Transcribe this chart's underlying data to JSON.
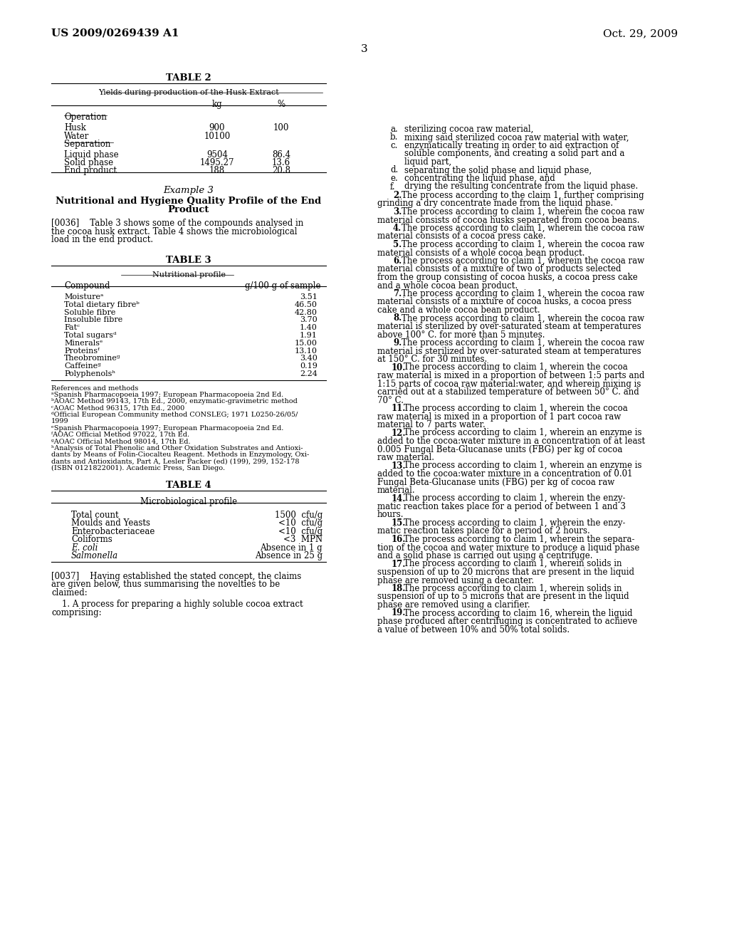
{
  "bg_color": "#ffffff",
  "header_left": "US 2009/0269439 A1",
  "header_right": "Oct. 29, 2009",
  "page_number": "3",
  "table2_title": "TABLE 2",
  "table2_subtitle": "Yields during production of the Husk Extract",
  "table3_title": "TABLE 3",
  "table3_subtitle": "Nutritional profile",
  "table3_rows": [
    [
      "Moistureᵃ",
      "3.51"
    ],
    [
      "Total dietary fibreᵇ",
      "46.50"
    ],
    [
      "Soluble fibre",
      "42.80"
    ],
    [
      "Insoluble fibre",
      "3.70"
    ],
    [
      "Fatᶜ",
      "1.40"
    ],
    [
      "Total sugarsᵈ",
      "1.91"
    ],
    [
      "Mineralsᵉ",
      "15.00"
    ],
    [
      "Proteinsᶠ",
      "13.10"
    ],
    [
      "Theobromineᵍ",
      "3.40"
    ],
    [
      "Caffeineᵍ",
      "0.19"
    ],
    [
      "Polyphenolsʰ",
      "2.24"
    ]
  ],
  "table3_footnotes": [
    "References and methods",
    "ᵃSpanish Pharmacopoeia 1997; European Pharmacopoeia 2nd Ed.",
    "ᵇAOAC Method 99143, 17th Ed., 2000, enzymatic-gravimetric method",
    "ᶜAOAC Method 96315, 17th Ed., 2000",
    "ᵈOfficial European Community method CONSLEG; 1971 L0250-26/05/",
    "1999",
    "ᵉSpanish Pharmacopoeia 1997; European Pharmacopoeia 2nd Ed.",
    "ᶠAOAC Official Method 97022, 17th Ed.",
    "ᵍAOAC Official Method 98014, 17th Ed.",
    "ʰAnalysis of Total Phenolic and Other Oxidation Substrates and Antioxi-",
    "dants by Means of Folin-Ciocalteu Reagent. Methods in Enzymology, Oxi-",
    "dants and Antioxidants, Part A, Lesler Packer (ed) (199), 299, 152-178",
    "(ISBN 0121822001). Academic Press, San Diego."
  ],
  "table4_title": "TABLE 4",
  "table4_subtitle": "Microbiological profile",
  "table4_rows": [
    [
      "Total count",
      "1500  cfu/g",
      false
    ],
    [
      "Moulds and Yeasts",
      "<10  cfu/g",
      false
    ],
    [
      "Enterobacteriaceae",
      "<10  cfu/g",
      false
    ],
    [
      "Coliforms",
      "<3  MPN",
      false
    ],
    [
      "E. coli",
      "Absence in 1 g",
      true
    ],
    [
      "Salmonella",
      "Absence in 25 g",
      true
    ]
  ],
  "right_list_items": [
    {
      "letter": "a.",
      "text": "sterilizing cocoa raw material,",
      "cont": []
    },
    {
      "letter": "b.",
      "text": "mixing said sterilized cocoa raw material with water,",
      "cont": []
    },
    {
      "letter": "c.",
      "text": "enzymatically treating in order to aid extraction of",
      "cont": [
        "soluble components, and creating a solid part and a",
        "liquid part,"
      ]
    },
    {
      "letter": "d.",
      "text": "separating the solid phase and liquid phase,",
      "cont": []
    },
    {
      "letter": "e.",
      "text": "concentrating the liquid phase, and",
      "cont": []
    },
    {
      "letter": "f.",
      "text": "drying the resulting concentrate from the liquid phase.",
      "cont": []
    }
  ],
  "claims": [
    {
      "num": "2",
      "first": "The process according to the claim 1, further comprising",
      "rest": [
        "grinding a dry concentrate made from the liquid phase."
      ]
    },
    {
      "num": "3",
      "first": "The process according to claim 1, wherein the cocoa raw",
      "rest": [
        "material consists of cocoa husks separated from cocoa beans."
      ]
    },
    {
      "num": "4",
      "first": "The process according to claim 1, wherein the cocoa raw",
      "rest": [
        "material consists of a cocoa press cake."
      ]
    },
    {
      "num": "5",
      "first": "The process according to claim 1, wherein the cocoa raw",
      "rest": [
        "material consists of a whole cocoa bean product."
      ]
    },
    {
      "num": "6",
      "first": "The process according to claim 1, wherein the cocoa raw",
      "rest": [
        "material consists of a mixture of two of products selected",
        "from the group consisting of cocoa husks, a cocoa press cake",
        "and a whole cocoa bean product."
      ]
    },
    {
      "num": "7",
      "first": "The process according to claim 1, wherein the cocoa raw",
      "rest": [
        "material consists of a mixture of cocoa husks, a cocoa press",
        "cake and a whole cocoa bean product."
      ]
    },
    {
      "num": "8",
      "first": "The process according to claim 1, wherein the cocoa raw",
      "rest": [
        "material is sterilized by over-saturated steam at temperatures",
        "above 100° C. for more than 5 minutes."
      ]
    },
    {
      "num": "9",
      "first": "The process according to claim 1, wherein the cocoa raw",
      "rest": [
        "material is sterilized by over-saturated steam at temperatures",
        "at 150° C. for 30 minutes."
      ]
    },
    {
      "num": "10",
      "first": "The process according to claim 1, wherein the cocoa",
      "rest": [
        "raw material is mixed in a proportion of between 1:5 parts and",
        "1:15 parts of cocoa raw material:water, and wherein mixing is",
        "carried out at a stabilized temperature of between 50° C. and",
        "70° C."
      ]
    },
    {
      "num": "11",
      "first": "The process according to claim 1, wherein the cocoa",
      "rest": [
        "raw material is mixed in a proportion of 1 part cocoa raw",
        "material to 7 parts water."
      ]
    },
    {
      "num": "12",
      "first": "The process according to claim 1, wherein an enzyme is",
      "rest": [
        "added to the cocoa:water mixture in a concentration of at least",
        "0.005 Fungal Beta-Glucanase units (FBG) per kg of cocoa",
        "raw material."
      ]
    },
    {
      "num": "13",
      "first": "The process according to claim 1, wherein an enzyme is",
      "rest": [
        "added to the cocoa:water mixture in a concentration of 0.01",
        "Fungal Beta-Glucanase units (FBG) per kg of cocoa raw",
        "material."
      ]
    },
    {
      "num": "14",
      "first": "The process according to claim 1, wherein the enzy-",
      "rest": [
        "matic reaction takes place for a period of between 1 and 3",
        "hours."
      ]
    },
    {
      "num": "15",
      "first": "The process according to claim 1, wherein the enzy-",
      "rest": [
        "matic reaction takes place for a period of 2 hours."
      ]
    },
    {
      "num": "16",
      "first": "The process according to claim 1, wherein the separa-",
      "rest": [
        "tion of the cocoa and water mixture to produce a liquid phase",
        "and a solid phase is carried out using a centrifuge."
      ]
    },
    {
      "num": "17",
      "first": "The process according to claim 1, wherein solids in",
      "rest": [
        "suspension of up to 20 microns that are present in the liquid",
        "phase are removed using a decanter."
      ]
    },
    {
      "num": "18",
      "first": "The process according to claim 1, wherein solids in",
      "rest": [
        "suspension of up to 5 microns that are present in the liquid",
        "phase are removed using a clarifier."
      ]
    },
    {
      "num": "19",
      "first": "The process according to claim 16, wherein the liquid",
      "rest": [
        "phase produced after centrifuging is concentrated to achieve",
        "a value of between 10% and 50% total solids."
      ]
    }
  ]
}
